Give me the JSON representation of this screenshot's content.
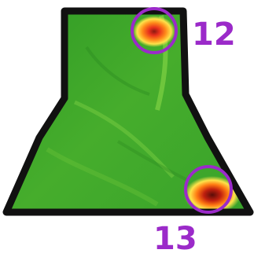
{
  "map": {
    "field_color": "#3fa52a",
    "outline_color": "#111111",
    "marker_color": "#9b2ac9",
    "hotspot_colors": [
      "#ffe24a",
      "#ff8a1a",
      "#e8301c",
      "#8a1a10"
    ]
  },
  "markers": [
    {
      "label": "12",
      "icon": "circle-marker-icon"
    },
    {
      "label": "13",
      "icon": "circle-marker-icon"
    }
  ]
}
